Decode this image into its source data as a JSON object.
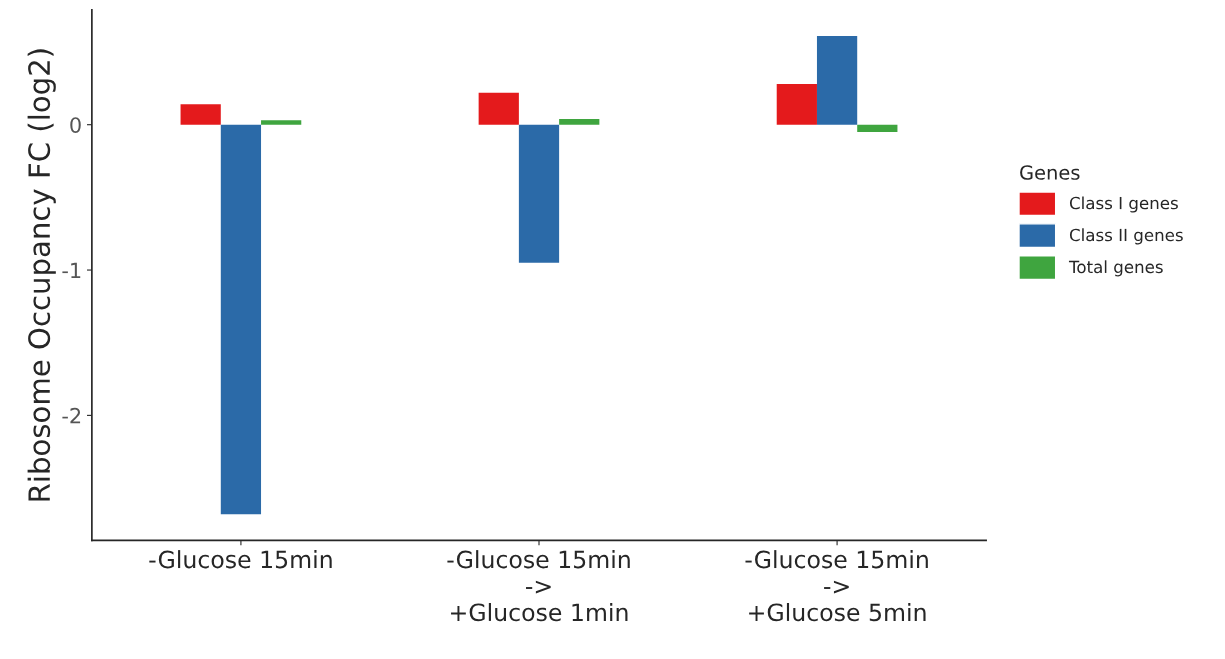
{
  "chart_data": {
    "type": "bar",
    "ylabel": "Ribosome Occupancy FC (log2)",
    "legend_title": "Genes",
    "categories": [
      "-Glucose 15min",
      "-Glucose 15min\n->\n+Glucose 1min",
      "-Glucose 15min\n->\n+Glucose 5min"
    ],
    "series": [
      {
        "name": "Class I genes",
        "color": "#e41a1c",
        "values": [
          0.14,
          0.22,
          0.28
        ]
      },
      {
        "name": "Class II genes",
        "color": "#2b6aa8",
        "values": [
          -2.68,
          -0.95,
          0.61
        ]
      },
      {
        "name": "Total genes",
        "color": "#3fa53f",
        "values": [
          0.03,
          0.04,
          -0.05
        ]
      }
    ],
    "ylim": [
      -2.86,
      0.79
    ],
    "yticks": [
      -2,
      -1,
      0
    ],
    "grid": false,
    "legend": "right"
  }
}
